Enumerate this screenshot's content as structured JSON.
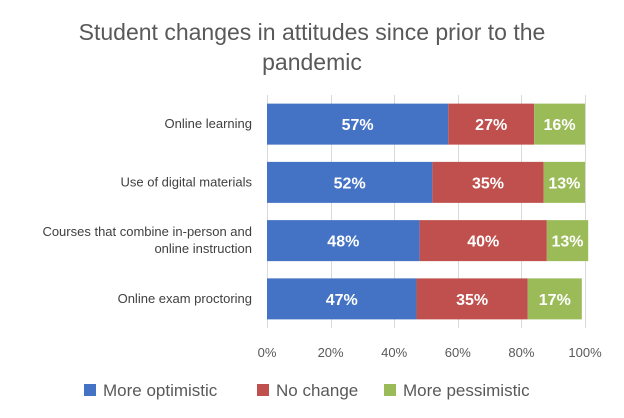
{
  "chart_data": {
    "type": "bar",
    "orientation": "horizontal",
    "stacked": "percent",
    "title": "Student changes in attitudes since prior to the pandemic",
    "title_lines": [
      "Student changes in attitudes since prior to the",
      "pandemic"
    ],
    "categories": [
      "Online learning",
      "Use of digital materials",
      "Courses that combine in-person and online instruction",
      "Online exam proctoring"
    ],
    "category_lines": [
      [
        "Online learning"
      ],
      [
        "Use of digital materials"
      ],
      [
        "Courses that combine in-person and",
        "online instruction"
      ],
      [
        "Online exam proctoring"
      ]
    ],
    "series": [
      {
        "name": "More optimistic",
        "color": "#4472C4",
        "values": [
          57,
          52,
          48,
          47
        ],
        "labels": [
          "57%",
          "52%",
          "48%",
          "47%"
        ]
      },
      {
        "name": "No change",
        "color": "#C0504D",
        "values": [
          27,
          35,
          40,
          35
        ],
        "labels": [
          "27%",
          "35%",
          "40%",
          "35%"
        ]
      },
      {
        "name": "More pessimistic",
        "color": "#9BBB59",
        "values": [
          16,
          13,
          13,
          17
        ],
        "labels": [
          "16%",
          "13%",
          "13%",
          "17%"
        ]
      }
    ],
    "xlim": [
      0,
      100
    ],
    "x_ticks": [
      "0%",
      "20%",
      "40%",
      "60%",
      "80%",
      "100%"
    ],
    "xlabel": "",
    "ylabel": "",
    "grid": true,
    "legend_position": "bottom"
  }
}
